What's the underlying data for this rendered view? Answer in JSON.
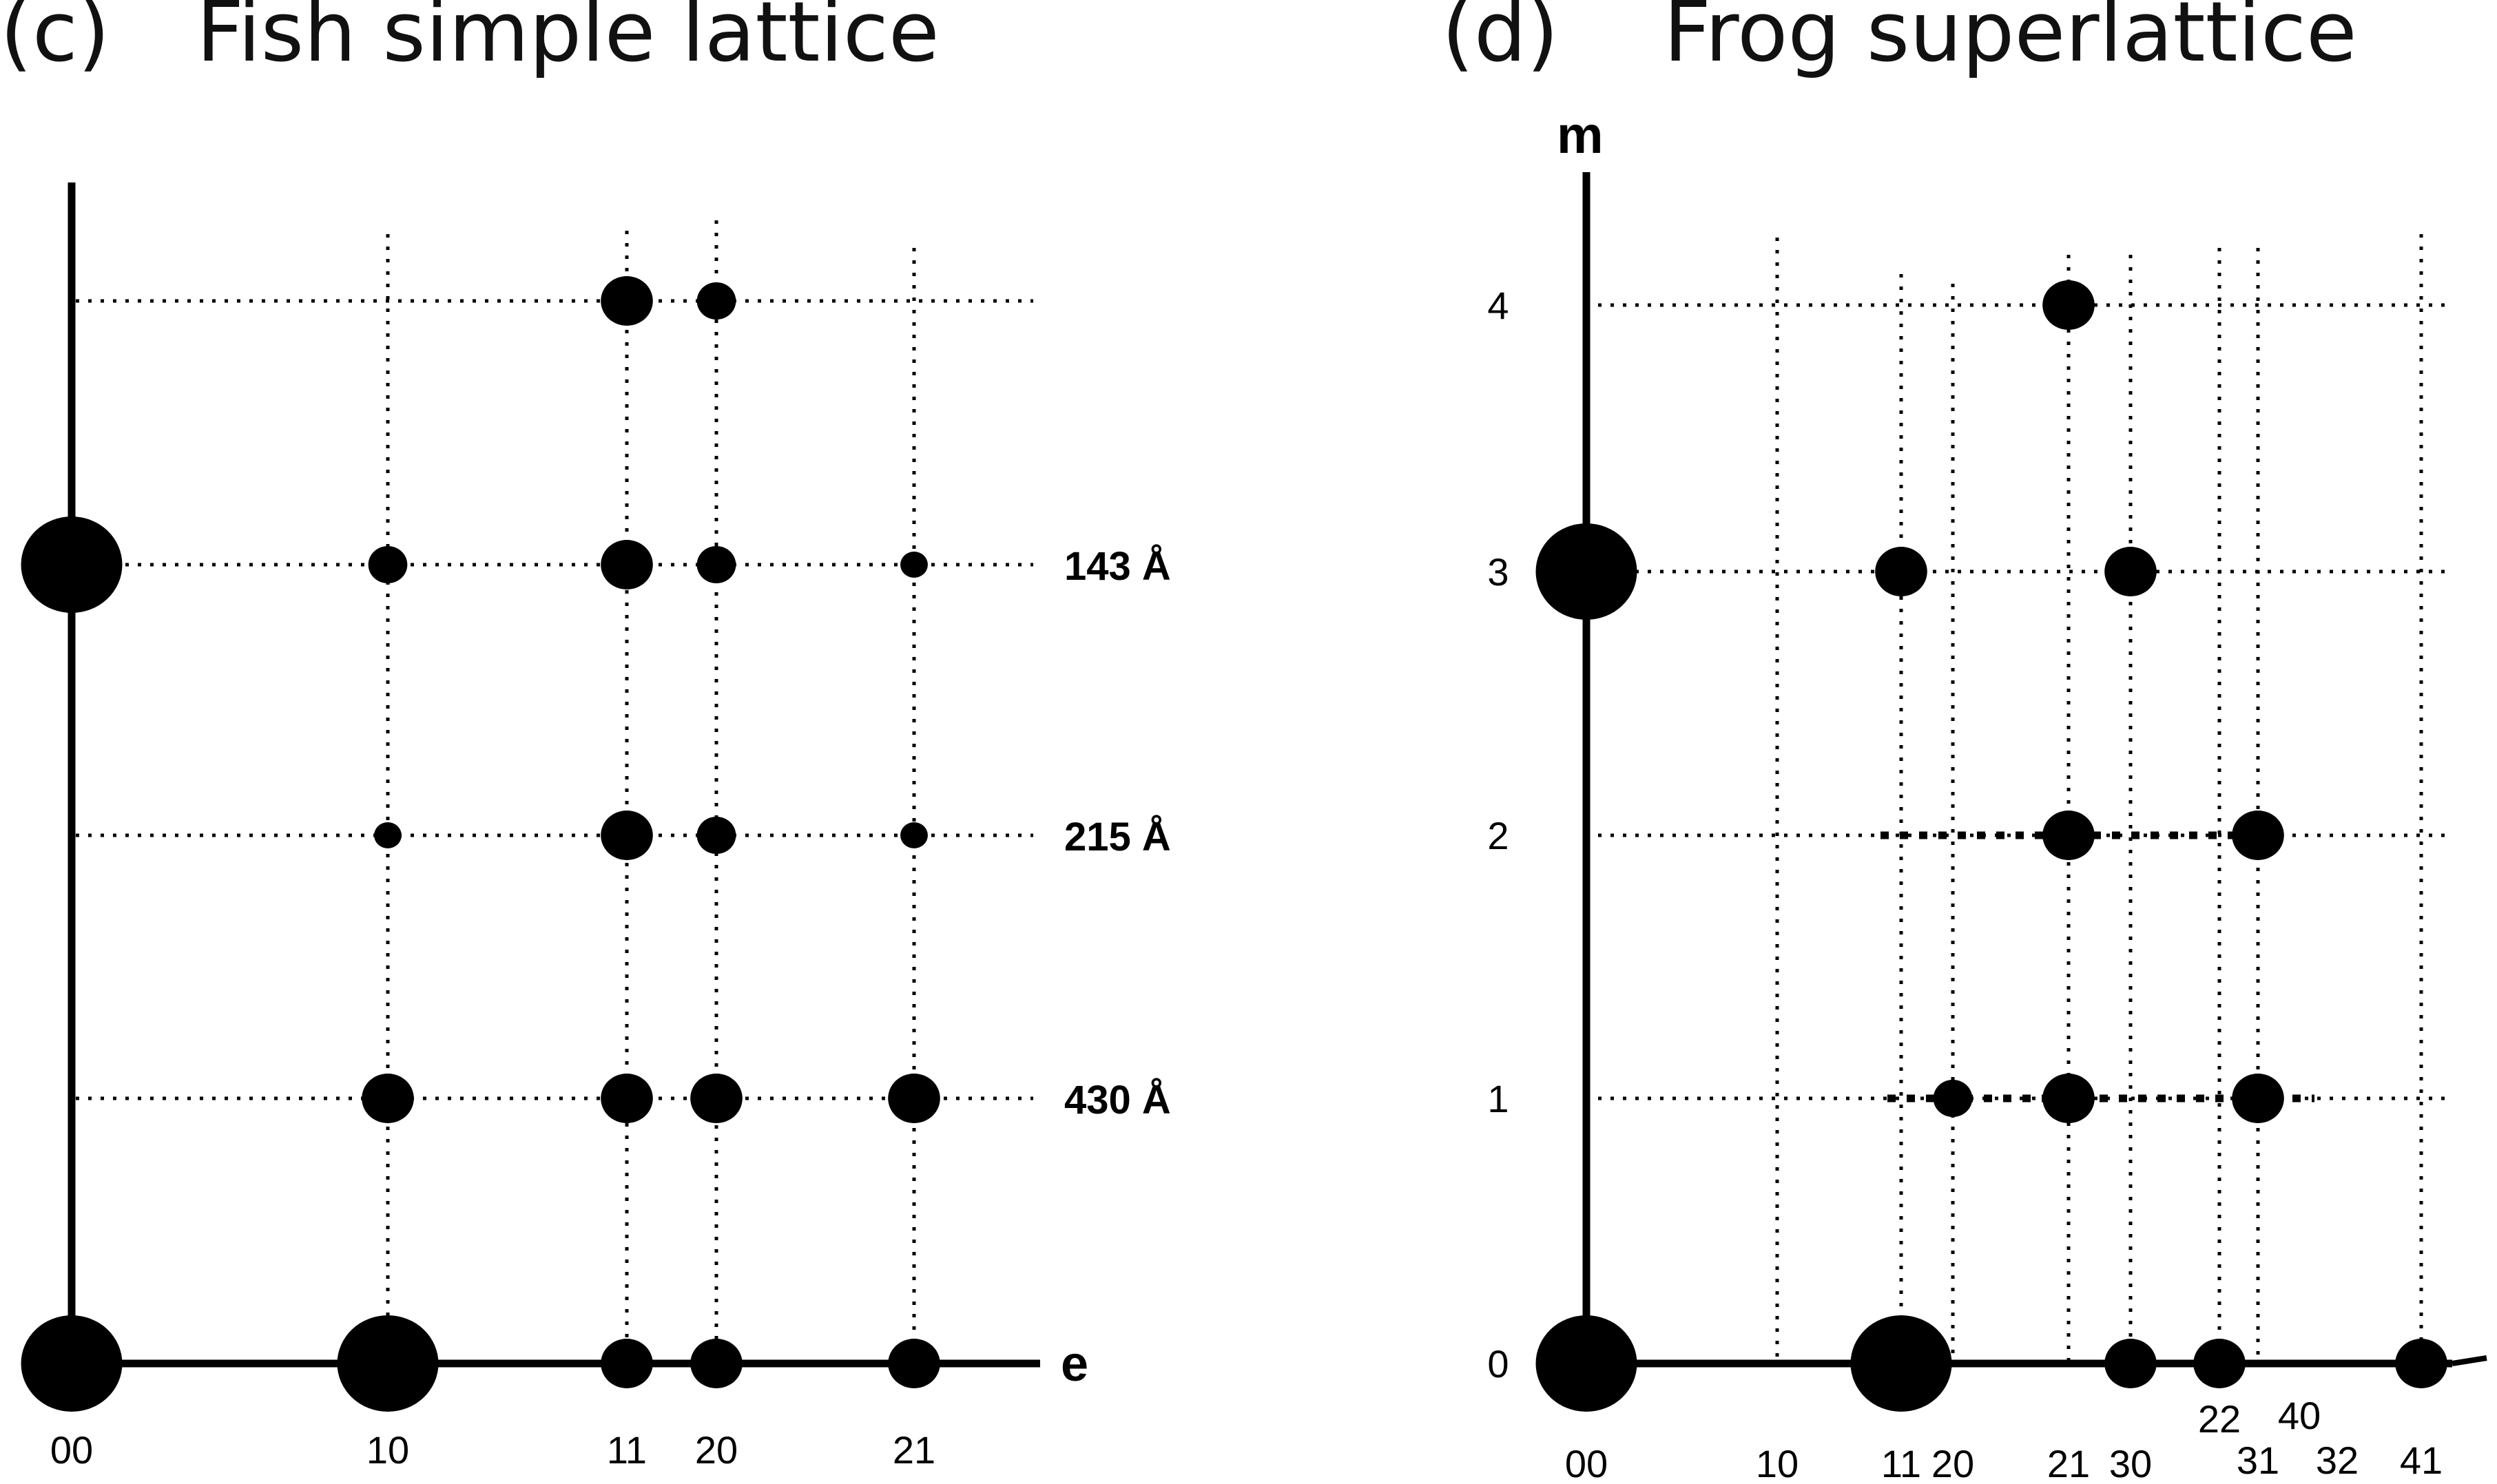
{
  "panels": [
    {
      "id": "c",
      "letter": "(c)",
      "title": "Fish simple lattice",
      "x_axis_label": "e",
      "y_axis_label": "",
      "layer_lines": [
        {
          "row": 4,
          "label": ""
        },
        {
          "row": 3,
          "label": "143 Å"
        },
        {
          "row": 2,
          "label": "215 Å"
        },
        {
          "row": 1,
          "label": "430 Å"
        },
        {
          "row": 0,
          "label": ""
        }
      ],
      "row_labels": [],
      "columns": [
        "00",
        "10",
        "11",
        "20",
        "21"
      ],
      "reflections": [
        {
          "col": "00",
          "row": 0,
          "size": "xl"
        },
        {
          "col": "10",
          "row": 0,
          "size": "xl"
        },
        {
          "col": "11",
          "row": 0,
          "size": "m"
        },
        {
          "col": "20",
          "row": 0,
          "size": "m"
        },
        {
          "col": "21",
          "row": 0,
          "size": "m"
        },
        {
          "col": "10",
          "row": 1,
          "size": "m"
        },
        {
          "col": "11",
          "row": 1,
          "size": "m"
        },
        {
          "col": "20",
          "row": 1,
          "size": "m"
        },
        {
          "col": "21",
          "row": 1,
          "size": "m"
        },
        {
          "col": "10",
          "row": 2,
          "size": "xs"
        },
        {
          "col": "11",
          "row": 2,
          "size": "m"
        },
        {
          "col": "20",
          "row": 2,
          "size": "s"
        },
        {
          "col": "21",
          "row": 2,
          "size": "xs"
        },
        {
          "col": "00",
          "row": 3,
          "size": "xl"
        },
        {
          "col": "10",
          "row": 3,
          "size": "s"
        },
        {
          "col": "11",
          "row": 3,
          "size": "m"
        },
        {
          "col": "20",
          "row": 3,
          "size": "s"
        },
        {
          "col": "21",
          "row": 3,
          "size": "xs"
        },
        {
          "col": "11",
          "row": 4,
          "size": "m"
        },
        {
          "col": "20",
          "row": 4,
          "size": "s"
        }
      ]
    },
    {
      "id": "d",
      "letter": "(d)",
      "title": "Frog superlattice",
      "x_axis_label": "",
      "y_axis_label": "m",
      "layer_lines": [
        {
          "row": 4,
          "label": ""
        },
        {
          "row": 3,
          "label": ""
        },
        {
          "row": 2,
          "label": ""
        },
        {
          "row": 1,
          "label": ""
        },
        {
          "row": 0,
          "label": ""
        }
      ],
      "row_labels": [
        "0",
        "1",
        "2",
        "3",
        "4"
      ],
      "columns": [
        "00",
        "10",
        "11",
        "20",
        "21",
        "30",
        "22",
        "31",
        "40",
        "32",
        "41"
      ],
      "reflections": [
        {
          "col": "00",
          "row": 0,
          "size": "xl"
        },
        {
          "col": "11",
          "row": 0,
          "size": "xl"
        },
        {
          "col": "30",
          "row": 0,
          "size": "m"
        },
        {
          "col": "22",
          "row": 0,
          "size": "m"
        },
        {
          "col": "41",
          "row": 0,
          "size": "m"
        },
        {
          "col": "20",
          "row": 1,
          "size": "s"
        },
        {
          "col": "21",
          "row": 1,
          "size": "m"
        },
        {
          "col": "31",
          "row": 1,
          "size": "m"
        },
        {
          "col": "21",
          "row": 2,
          "size": "m"
        },
        {
          "col": "31",
          "row": 2,
          "size": "m"
        },
        {
          "col": "00",
          "row": 3,
          "size": "xl"
        },
        {
          "col": "11",
          "row": 3,
          "size": "m"
        },
        {
          "col": "30",
          "row": 3,
          "size": "m"
        },
        {
          "col": "21",
          "row": 4,
          "size": "m"
        }
      ]
    }
  ]
}
